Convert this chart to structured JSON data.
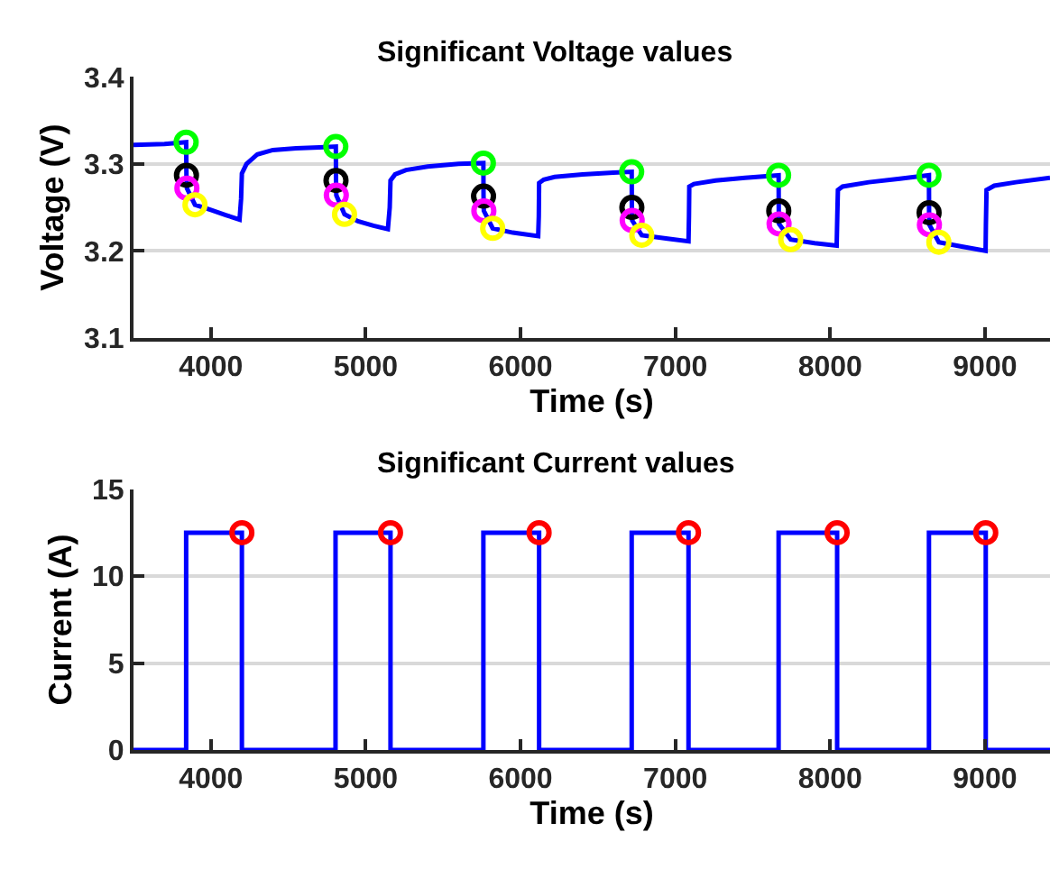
{
  "chart_data": [
    {
      "type": "line",
      "title": "Significant Voltage values",
      "xlabel": "Time (s)",
      "ylabel": "Voltage (V)",
      "xlim": [
        3500,
        9420
      ],
      "ylim": [
        3.1,
        3.4
      ],
      "xticks": [
        4000,
        5000,
        6000,
        7000,
        8000,
        9000
      ],
      "yticks": [
        3.1,
        3.2,
        3.3,
        3.4
      ],
      "grid": "y",
      "series": [
        {
          "color": "#0000ff",
          "x": [
            3500,
            3700,
            3840,
            3842,
            3845,
            3897,
            4000,
            4100,
            4185,
            4195,
            4200,
            4230,
            4300,
            4400,
            4550,
            4700,
            4807,
            4808,
            4810,
            4863,
            4950,
            5050,
            5143,
            5155,
            5160,
            5190,
            5260,
            5400,
            5600,
            5760,
            5761,
            5763,
            5820,
            5950,
            6114,
            6118,
            6120,
            6150,
            6220,
            6400,
            6600,
            6718,
            6719,
            6721,
            6783,
            6950,
            7085,
            7088,
            7090,
            7120,
            7260,
            7450,
            7667,
            7668,
            7670,
            7745,
            7900,
            8042,
            8046,
            8050,
            8080,
            8250,
            8450,
            8638,
            8639,
            8641,
            8702,
            8850,
            9004,
            9006,
            9010,
            9060,
            9200,
            9420
          ],
          "values": [
            3.322,
            3.323,
            3.325,
            3.287,
            3.272,
            3.253,
            3.247,
            3.241,
            3.236,
            3.26,
            3.289,
            3.3,
            3.311,
            3.316,
            3.318,
            3.319,
            3.32,
            3.281,
            3.264,
            3.242,
            3.234,
            3.229,
            3.225,
            3.25,
            3.281,
            3.288,
            3.293,
            3.297,
            3.3,
            3.301,
            3.263,
            3.246,
            3.226,
            3.221,
            3.217,
            3.24,
            3.278,
            3.282,
            3.285,
            3.288,
            3.29,
            3.291,
            3.25,
            3.235,
            3.218,
            3.214,
            3.211,
            3.24,
            3.274,
            3.277,
            3.281,
            3.284,
            3.287,
            3.246,
            3.231,
            3.213,
            3.209,
            3.206,
            3.24,
            3.27,
            3.274,
            3.279,
            3.283,
            3.287,
            3.244,
            3.23,
            3.21,
            3.205,
            3.2,
            3.23,
            3.27,
            3.275,
            3.279,
            3.284
          ]
        },
        {
          "type": "scatter",
          "color": "#00ff00",
          "marker": "circle",
          "x": [
            3840,
            4807,
            5760,
            6718,
            7667,
            8638
          ],
          "values": [
            3.325,
            3.32,
            3.301,
            3.291,
            3.287,
            3.287
          ]
        },
        {
          "type": "scatter",
          "color": "#000000",
          "marker": "circle",
          "x": [
            3842,
            4808,
            5761,
            6719,
            7668,
            8639
          ],
          "values": [
            3.287,
            3.281,
            3.263,
            3.25,
            3.246,
            3.244
          ]
        },
        {
          "type": "scatter",
          "color": "#ff00ff",
          "marker": "circle",
          "x": [
            3845,
            4810,
            5763,
            6721,
            7670,
            8641
          ],
          "values": [
            3.272,
            3.264,
            3.246,
            3.235,
            3.231,
            3.23
          ]
        },
        {
          "type": "scatter",
          "color": "#ffff00",
          "marker": "circle",
          "x": [
            3897,
            4863,
            5820,
            6783,
            7745,
            8702
          ],
          "values": [
            3.253,
            3.242,
            3.226,
            3.218,
            3.213,
            3.21
          ]
        }
      ]
    },
    {
      "type": "line",
      "title": "Significant Current values",
      "xlabel": "Time (s)",
      "ylabel": "Current (A)",
      "xlim": [
        3500,
        9420
      ],
      "ylim": [
        0,
        15
      ],
      "xticks": [
        4000,
        5000,
        6000,
        7000,
        8000,
        9000
      ],
      "yticks": [
        0,
        5,
        10,
        15
      ],
      "grid": "y",
      "series": [
        {
          "color": "#0000ff",
          "x": [
            3500,
            3840,
            3840,
            4200,
            4200,
            4805,
            4805,
            5160,
            5160,
            5760,
            5760,
            6120,
            6120,
            6718,
            6718,
            7085,
            7085,
            7667,
            7667,
            8045,
            8045,
            8638,
            8638,
            9005,
            9005,
            9420
          ],
          "values": [
            0,
            0,
            12.5,
            12.5,
            0,
            0,
            12.5,
            12.5,
            0,
            0,
            12.5,
            12.5,
            0,
            0,
            12.5,
            12.5,
            0,
            0,
            12.5,
            12.5,
            0,
            0,
            12.5,
            12.5,
            0,
            0
          ]
        },
        {
          "type": "scatter",
          "color": "#ff0000",
          "marker": "circle",
          "x": [
            4200,
            5160,
            6120,
            7085,
            8045,
            9005
          ],
          "values": [
            12.5,
            12.5,
            12.5,
            12.5,
            12.5,
            12.5
          ]
        }
      ]
    }
  ]
}
